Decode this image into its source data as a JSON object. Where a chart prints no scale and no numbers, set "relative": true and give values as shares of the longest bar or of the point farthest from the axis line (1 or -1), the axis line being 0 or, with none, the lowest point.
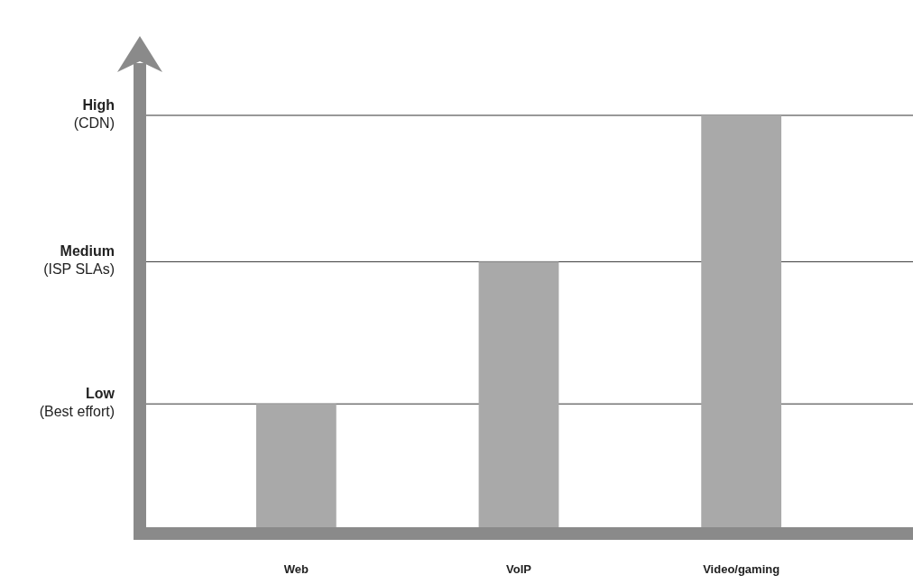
{
  "chart_data": {
    "type": "bar",
    "categories": [
      "Web",
      "VoIP",
      "Video/gaming"
    ],
    "values": [
      0.31,
      0.65,
      1
    ],
    "color": "#a9a9a9",
    "relative": true,
    "ref_lines": [
      {
        "axis": "y",
        "value": 0.31,
        "label": "Low\n(Best effort)"
      },
      {
        "axis": "y",
        "value": 0.65,
        "label": "Medium\n(ISP SLAs)"
      },
      {
        "axis": "y",
        "value": 1,
        "label": "High\n(CDN)"
      }
    ]
  }
}
